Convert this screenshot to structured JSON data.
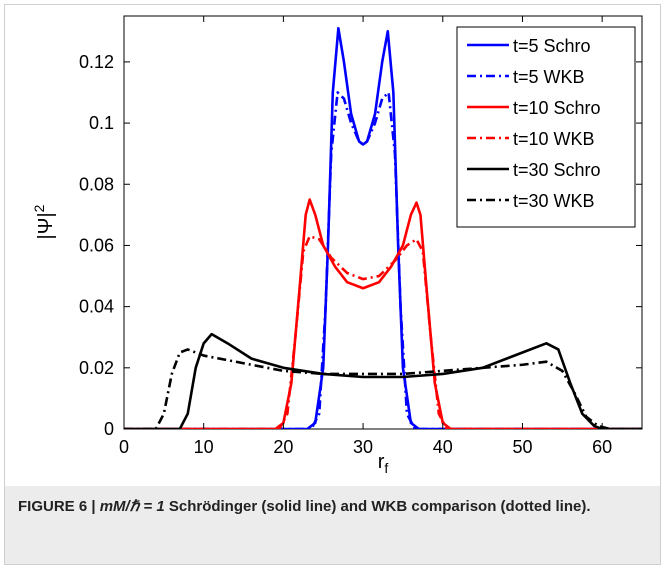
{
  "chart_data": {
    "type": "line",
    "title": "",
    "xlabel": "r_f",
    "ylabel": "|Ψ|^2",
    "xlim": [
      0,
      65
    ],
    "ylim": [
      0,
      0.135
    ],
    "xticks": [
      0,
      10,
      20,
      30,
      40,
      50,
      60
    ],
    "yticks": [
      0,
      0.02,
      0.04,
      0.06,
      0.08,
      0.1,
      0.12
    ],
    "ytick_labels": [
      "0",
      "0.02",
      "0.04",
      "0.06",
      "0.08",
      "0.1",
      "0.12"
    ],
    "grid": false,
    "legend_position": "top-right",
    "series": [
      {
        "name": "t=5 Schro",
        "color": "#0000ff",
        "style": "solid",
        "points": [
          [
            0,
            0
          ],
          [
            23,
            0
          ],
          [
            24,
            0.002
          ],
          [
            25,
            0.02
          ],
          [
            25.6,
            0.06
          ],
          [
            26.2,
            0.11
          ],
          [
            26.9,
            0.131
          ],
          [
            27.6,
            0.12
          ],
          [
            28.5,
            0.103
          ],
          [
            29.5,
            0.094
          ],
          [
            30,
            0.093
          ],
          [
            30.5,
            0.094
          ],
          [
            31.5,
            0.103
          ],
          [
            32.4,
            0.12
          ],
          [
            33.1,
            0.13
          ],
          [
            33.8,
            0.11
          ],
          [
            34.4,
            0.06
          ],
          [
            35,
            0.02
          ],
          [
            36,
            0.002
          ],
          [
            37,
            0
          ],
          [
            65,
            0
          ]
        ]
      },
      {
        "name": "t=5 WKB",
        "color": "#0000ff",
        "style": "dashdot",
        "points": [
          [
            0,
            0
          ],
          [
            23.5,
            0
          ],
          [
            24.5,
            0.005
          ],
          [
            25.3,
            0.04
          ],
          [
            26,
            0.09
          ],
          [
            26.8,
            0.11
          ],
          [
            27.6,
            0.108
          ],
          [
            28.5,
            0.1
          ],
          [
            29.5,
            0.094
          ],
          [
            30,
            0.093
          ],
          [
            30.5,
            0.094
          ],
          [
            31.5,
            0.1
          ],
          [
            32.4,
            0.108
          ],
          [
            33.2,
            0.11
          ],
          [
            34,
            0.09
          ],
          [
            34.7,
            0.04
          ],
          [
            35.5,
            0.005
          ],
          [
            36.5,
            0
          ],
          [
            65,
            0
          ]
        ]
      },
      {
        "name": "t=10 Schro",
        "color": "#ff0000",
        "style": "solid",
        "points": [
          [
            0,
            0
          ],
          [
            19,
            0
          ],
          [
            20,
            0.002
          ],
          [
            21,
            0.015
          ],
          [
            22,
            0.045
          ],
          [
            22.8,
            0.07
          ],
          [
            23.3,
            0.075
          ],
          [
            24,
            0.07
          ],
          [
            25,
            0.06
          ],
          [
            26.5,
            0.053
          ],
          [
            28,
            0.048
          ],
          [
            30,
            0.046
          ],
          [
            32,
            0.048
          ],
          [
            33.5,
            0.053
          ],
          [
            35,
            0.06
          ],
          [
            36,
            0.07
          ],
          [
            36.7,
            0.074
          ],
          [
            37.2,
            0.07
          ],
          [
            38,
            0.045
          ],
          [
            39,
            0.015
          ],
          [
            40,
            0.002
          ],
          [
            41,
            0
          ],
          [
            65,
            0
          ]
        ]
      },
      {
        "name": "t=10 WKB",
        "color": "#ff0000",
        "style": "dashdot",
        "points": [
          [
            0,
            0
          ],
          [
            19.5,
            0
          ],
          [
            20.5,
            0.005
          ],
          [
            21.5,
            0.03
          ],
          [
            22.5,
            0.058
          ],
          [
            23.3,
            0.063
          ],
          [
            24.5,
            0.062
          ],
          [
            26,
            0.056
          ],
          [
            28,
            0.051
          ],
          [
            30,
            0.049
          ],
          [
            32,
            0.05
          ],
          [
            34,
            0.055
          ],
          [
            35.5,
            0.06
          ],
          [
            36.7,
            0.062
          ],
          [
            37.5,
            0.058
          ],
          [
            38.5,
            0.03
          ],
          [
            39.5,
            0.005
          ],
          [
            40.5,
            0
          ],
          [
            65,
            0
          ]
        ]
      },
      {
        "name": "t=30 Schro",
        "color": "#000000",
        "style": "solid",
        "points": [
          [
            0,
            0
          ],
          [
            7,
            0
          ],
          [
            8,
            0.005
          ],
          [
            9,
            0.02
          ],
          [
            10,
            0.028
          ],
          [
            11,
            0.031
          ],
          [
            13,
            0.028
          ],
          [
            16,
            0.023
          ],
          [
            20,
            0.02
          ],
          [
            25,
            0.018
          ],
          [
            30,
            0.017
          ],
          [
            35,
            0.017
          ],
          [
            40,
            0.018
          ],
          [
            45,
            0.02
          ],
          [
            50,
            0.025
          ],
          [
            53,
            0.028
          ],
          [
            54.5,
            0.026
          ],
          [
            56,
            0.015
          ],
          [
            57.5,
            0.005
          ],
          [
            59,
            0.001
          ],
          [
            60,
            0
          ],
          [
            65,
            0
          ]
        ]
      },
      {
        "name": "t=30 WKB",
        "color": "#000000",
        "style": "dashdot",
        "points": [
          [
            0,
            0
          ],
          [
            4,
            0
          ],
          [
            5,
            0.005
          ],
          [
            6,
            0.018
          ],
          [
            7,
            0.025
          ],
          [
            8,
            0.026
          ],
          [
            10,
            0.024
          ],
          [
            14,
            0.022
          ],
          [
            20,
            0.019
          ],
          [
            25,
            0.018
          ],
          [
            30,
            0.018
          ],
          [
            35,
            0.018
          ],
          [
            40,
            0.019
          ],
          [
            45,
            0.02
          ],
          [
            50,
            0.021
          ],
          [
            53,
            0.022
          ],
          [
            55,
            0.019
          ],
          [
            56.5,
            0.012
          ],
          [
            58,
            0.004
          ],
          [
            59.5,
            0.001
          ],
          [
            61,
            0
          ],
          [
            65,
            0
          ]
        ]
      }
    ]
  },
  "caption": {
    "figure_label": "FIGURE 6 |",
    "expr": "mM/ℏ = 1",
    "text": "Schrödinger (solid line) and WKB comparison (dotted line)."
  }
}
